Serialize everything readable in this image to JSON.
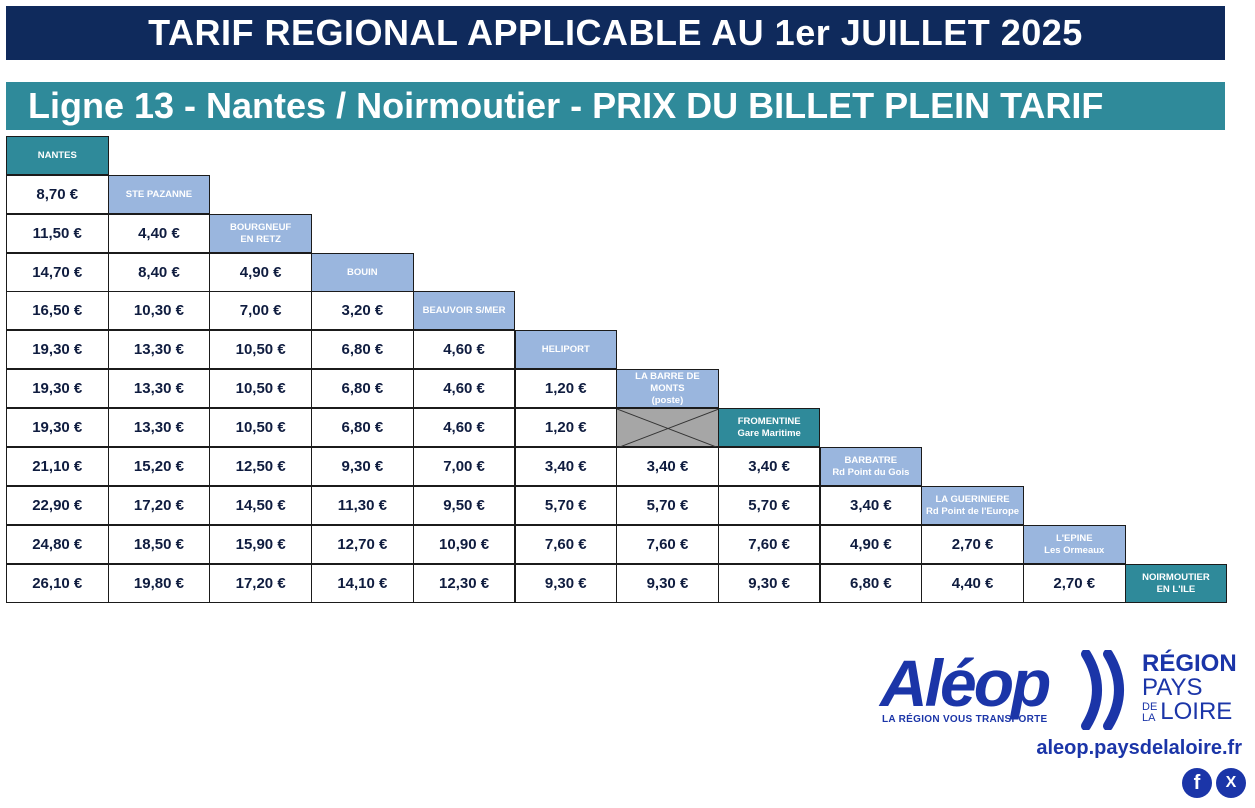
{
  "header": {
    "title": "TARIF REGIONAL APPLICABLE AU 1er JUILLET 2025",
    "subtitle": "Ligne 13 - Nantes / Noirmoutier - PRIX DU BILLET PLEIN TARIF"
  },
  "stops": [
    {
      "line1": "NANTES",
      "line2": "",
      "style": "teal"
    },
    {
      "line1": "STE PAZANNE",
      "line2": "",
      "style": "light"
    },
    {
      "line1": "BOURGNEUF",
      "line2": "EN RETZ",
      "style": "light"
    },
    {
      "line1": "BOUIN",
      "line2": "",
      "style": "light"
    },
    {
      "line1": "BEAUVOIR S/MER",
      "line2": "",
      "style": "light"
    },
    {
      "line1": "HELIPORT",
      "line2": "",
      "style": "light"
    },
    {
      "line1": "LA BARRE DE MONTS",
      "line2": "(poste)",
      "style": "light"
    },
    {
      "line1": "FROMENTINE",
      "line2": "Gare Maritime",
      "style": "teal"
    },
    {
      "line1": "BARBATRE",
      "line2": "Rd Point du Gois",
      "style": "light"
    },
    {
      "line1": "LA GUERINIERE",
      "line2": "Rd Point de l'Europe",
      "style": "light"
    },
    {
      "line1": "L'EPINE",
      "line2": "Les Ormeaux",
      "style": "light"
    },
    {
      "line1": "NOIRMOUTIER",
      "line2": "EN L'ILE",
      "style": "teal"
    }
  ],
  "prices": [
    [],
    [
      "8,70 €"
    ],
    [
      "11,50 €",
      "4,40 €"
    ],
    [
      "14,70 €",
      "8,40 €",
      "4,90 €"
    ],
    [
      "16,50 €",
      "10,30 €",
      "7,00 €",
      "3,20 €"
    ],
    [
      "19,30 €",
      "13,30 €",
      "10,50 €",
      "6,80 €",
      "4,60 €"
    ],
    [
      "19,30 €",
      "13,30 €",
      "10,50 €",
      "6,80 €",
      "4,60 €",
      "1,20 €"
    ],
    [
      "19,30 €",
      "13,30 €",
      "10,50 €",
      "6,80 €",
      "4,60 €",
      "1,20 €",
      null
    ],
    [
      "21,10 €",
      "15,20 €",
      "12,50 €",
      "9,30 €",
      "7,00 €",
      "3,40 €",
      "3,40 €",
      "3,40 €"
    ],
    [
      "22,90 €",
      "17,20 €",
      "14,50 €",
      "11,30 €",
      "9,50 €",
      "5,70 €",
      "5,70 €",
      "5,70 €",
      "3,40 €"
    ],
    [
      "24,80 €",
      "18,50 €",
      "15,90 €",
      "12,70 €",
      "10,90 €",
      "7,60 €",
      "7,60 €",
      "7,60 €",
      "4,90 €",
      "2,70 €"
    ],
    [
      "26,10 €",
      "19,80 €",
      "17,20 €",
      "14,10 €",
      "12,30 €",
      "9,30 €",
      "9,30 €",
      "9,30 €",
      "6,80 €",
      "4,40 €",
      "2,70 €"
    ]
  ],
  "colors": {
    "navy": "#0f2a5c",
    "teal": "#2f8a9a",
    "light_blue": "#9ab6de",
    "brand_blue": "#1b35a8"
  },
  "footer": {
    "logo_text": "Aléop",
    "tagline": "LA RÉGION VOUS TRANSPORTE",
    "region_line1": "RÉGION",
    "region_line2": "PAYS",
    "region_line3a": "DE",
    "region_line3b": "LA",
    "region_line3c": "LOIRE",
    "url": "aleop.paysdelaloire.fr",
    "facebook_icon": "f",
    "x_icon": "X"
  }
}
